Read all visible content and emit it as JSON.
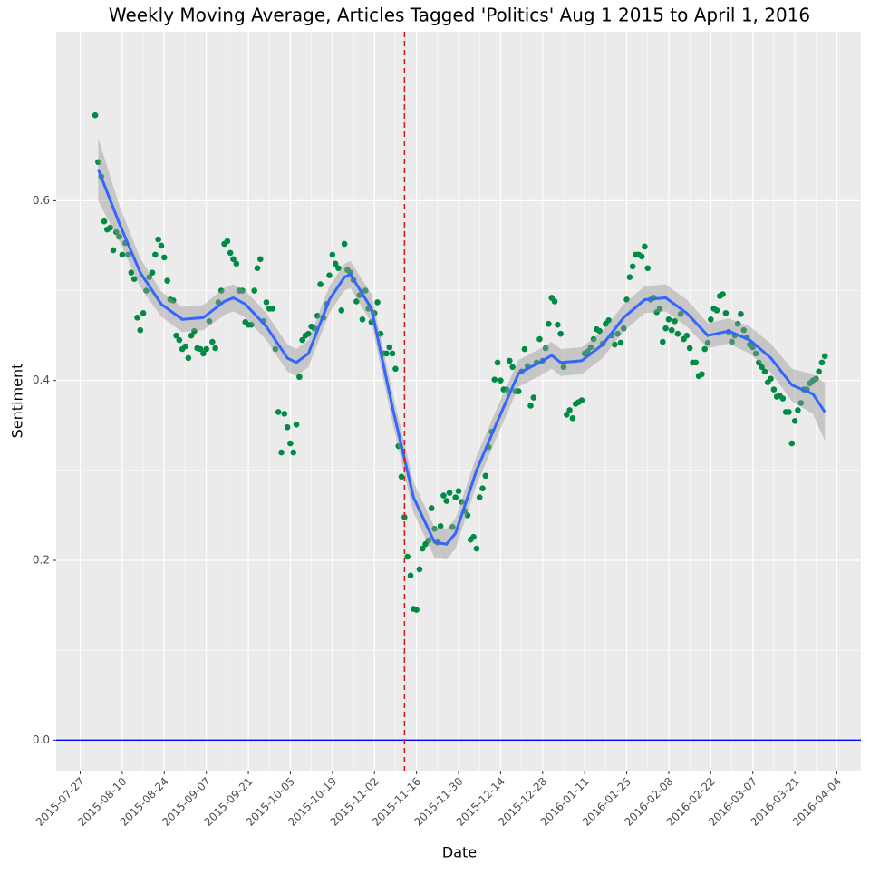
{
  "chart_data": {
    "type": "scatter",
    "title": "Weekly Moving Average, Articles Tagged 'Politics' Aug 1 2015 to April 1, 2016",
    "xlabel": "Date",
    "ylabel": "Sentiment",
    "xlim": [
      "2015-07-19",
      "2016-04-12"
    ],
    "ylim": [
      -0.034,
      0.788
    ],
    "xticks": [
      "2015-07-27",
      "2015-08-10",
      "2015-08-24",
      "2015-09-07",
      "2015-09-21",
      "2015-10-05",
      "2015-10-19",
      "2015-11-02",
      "2015-11-16",
      "2015-11-30",
      "2015-12-14",
      "2015-12-28",
      "2016-01-11",
      "2016-01-25",
      "2016-02-08",
      "2016-02-22",
      "2016-03-07",
      "2016-03-21",
      "2016-04-04"
    ],
    "yticks": [
      {
        "value": 0,
        "label": "0.0"
      },
      0.2,
      0.4,
      0.6
    ],
    "grid": true,
    "color": "#008B45",
    "x": [
      "2015-08-01",
      "2015-08-02",
      "2015-08-03",
      "2015-08-04",
      "2015-08-05",
      "2015-08-06",
      "2015-08-07",
      "2015-08-08",
      "2015-08-09",
      "2015-08-10",
      "2015-08-11",
      "2015-08-12",
      "2015-08-13",
      "2015-08-14",
      "2015-08-15",
      "2015-08-16",
      "2015-08-17",
      "2015-08-18",
      "2015-08-19",
      "2015-08-20",
      "2015-08-21",
      "2015-08-22",
      "2015-08-23",
      "2015-08-24",
      "2015-08-25",
      "2015-08-26",
      "2015-08-27",
      "2015-08-28",
      "2015-08-29",
      "2015-08-30",
      "2015-08-31",
      "2015-09-01",
      "2015-09-02",
      "2015-09-03",
      "2015-09-04",
      "2015-09-05",
      "2015-09-06",
      "2015-09-07",
      "2015-09-08",
      "2015-09-09",
      "2015-09-10",
      "2015-09-11",
      "2015-09-12",
      "2015-09-13",
      "2015-09-14",
      "2015-09-15",
      "2015-09-16",
      "2015-09-17",
      "2015-09-18",
      "2015-09-19",
      "2015-09-20",
      "2015-09-21",
      "2015-09-22",
      "2015-09-23",
      "2015-09-24",
      "2015-09-25",
      "2015-09-26",
      "2015-09-27",
      "2015-09-28",
      "2015-09-29",
      "2015-09-30",
      "2015-10-01",
      "2015-10-02",
      "2015-10-03",
      "2015-10-04",
      "2015-10-05",
      "2015-10-06",
      "2015-10-07",
      "2015-10-08",
      "2015-10-09",
      "2015-10-10",
      "2015-10-11",
      "2015-10-12",
      "2015-10-13",
      "2015-10-14",
      "2015-10-15",
      "2015-10-16",
      "2015-10-17",
      "2015-10-18",
      "2015-10-19",
      "2015-10-20",
      "2015-10-21",
      "2015-10-22",
      "2015-10-23",
      "2015-10-24",
      "2015-10-25",
      "2015-10-26",
      "2015-10-27",
      "2015-10-28",
      "2015-10-29",
      "2015-10-30",
      "2015-10-31",
      "2015-11-01",
      "2015-11-02",
      "2015-11-03",
      "2015-11-04",
      "2015-11-05",
      "2015-11-06",
      "2015-11-07",
      "2015-11-08",
      "2015-11-09",
      "2015-11-10",
      "2015-11-11",
      "2015-11-12",
      "2015-11-13",
      "2015-11-14",
      "2015-11-15",
      "2015-11-16",
      "2015-11-17",
      "2015-11-18",
      "2015-11-19",
      "2015-11-20",
      "2015-11-21",
      "2015-11-22",
      "2015-11-23",
      "2015-11-24",
      "2015-11-25",
      "2015-11-26",
      "2015-11-27",
      "2015-11-28",
      "2015-11-29",
      "2015-11-30",
      "2015-12-01",
      "2015-12-02",
      "2015-12-03",
      "2015-12-04",
      "2015-12-05",
      "2015-12-06",
      "2015-12-07",
      "2015-12-08",
      "2015-12-09",
      "2015-12-10",
      "2015-12-11",
      "2015-12-12",
      "2015-12-13",
      "2015-12-14",
      "2015-12-15",
      "2015-12-16",
      "2015-12-17",
      "2015-12-18",
      "2015-12-19",
      "2015-12-20",
      "2015-12-21",
      "2015-12-22",
      "2015-12-23",
      "2015-12-24",
      "2015-12-25",
      "2015-12-26",
      "2015-12-27",
      "2015-12-28",
      "2015-12-29",
      "2015-12-30",
      "2015-12-31",
      "2016-01-01",
      "2016-01-02",
      "2016-01-03",
      "2016-01-04",
      "2016-01-05",
      "2016-01-06",
      "2016-01-07",
      "2016-01-08",
      "2016-01-09",
      "2016-01-10",
      "2016-01-11",
      "2016-01-12",
      "2016-01-13",
      "2016-01-14",
      "2016-01-15",
      "2016-01-16",
      "2016-01-17",
      "2016-01-18",
      "2016-01-19",
      "2016-01-20",
      "2016-01-21",
      "2016-01-22",
      "2016-01-23",
      "2016-01-24",
      "2016-01-25",
      "2016-01-26",
      "2016-01-27",
      "2016-01-28",
      "2016-01-29",
      "2016-01-30",
      "2016-01-31",
      "2016-02-01",
      "2016-02-02",
      "2016-02-03",
      "2016-02-04",
      "2016-02-05",
      "2016-02-06",
      "2016-02-07",
      "2016-02-08",
      "2016-02-09",
      "2016-02-10",
      "2016-02-11",
      "2016-02-12",
      "2016-02-13",
      "2016-02-14",
      "2016-02-15",
      "2016-02-16",
      "2016-02-17",
      "2016-02-18",
      "2016-02-19",
      "2016-02-20",
      "2016-02-21",
      "2016-02-22",
      "2016-02-23",
      "2016-02-24",
      "2016-02-25",
      "2016-02-26",
      "2016-02-27",
      "2016-02-28",
      "2016-02-29",
      "2016-03-01",
      "2016-03-02",
      "2016-03-03",
      "2016-03-04",
      "2016-03-05",
      "2016-03-06",
      "2016-03-07",
      "2016-03-08",
      "2016-03-09",
      "2016-03-10",
      "2016-03-11",
      "2016-03-12",
      "2016-03-13",
      "2016-03-14",
      "2016-03-15",
      "2016-03-16",
      "2016-03-17",
      "2016-03-18",
      "2016-03-19",
      "2016-03-20",
      "2016-03-21",
      "2016-03-22",
      "2016-03-23",
      "2016-03-24",
      "2016-03-25",
      "2016-03-26",
      "2016-03-27",
      "2016-03-28",
      "2016-03-29",
      "2016-03-30",
      "2016-03-31"
    ],
    "values": [
      0.695,
      0.643,
      0.627,
      0.577,
      0.568,
      0.57,
      0.545,
      0.565,
      0.56,
      0.54,
      0.553,
      0.54,
      0.52,
      0.513,
      0.47,
      0.456,
      0.475,
      0.5,
      0.515,
      0.52,
      0.54,
      0.557,
      0.55,
      0.537,
      0.511,
      0.49,
      0.489,
      0.45,
      0.445,
      0.435,
      0.438,
      0.425,
      0.45,
      0.455,
      0.436,
      0.435,
      0.43,
      0.435,
      0.466,
      0.443,
      0.436,
      0.487,
      0.5,
      0.552,
      0.555,
      0.542,
      0.535,
      0.53,
      0.5,
      0.5,
      0.465,
      0.462,
      0.462,
      0.5,
      0.525,
      0.535,
      0.466,
      0.487,
      0.48,
      0.48,
      0.435,
      0.365,
      0.32,
      0.363,
      0.348,
      0.33,
      0.32,
      0.351,
      0.404,
      0.445,
      0.45,
      0.452,
      0.46,
      0.458,
      0.472,
      0.507,
      0.47,
      0.485,
      0.517,
      0.54,
      0.53,
      0.525,
      0.478,
      0.552,
      0.523,
      0.52,
      0.512,
      0.488,
      0.495,
      0.468,
      0.5,
      0.48,
      0.465,
      0.475,
      0.487,
      0.452,
      0.43,
      0.43,
      0.437,
      0.43,
      0.413,
      0.327,
      0.293,
      0.248,
      0.204,
      0.183,
      0.146,
      0.145,
      0.19,
      0.213,
      0.218,
      0.222,
      0.258,
      0.235,
      0.22,
      0.238,
      0.272,
      0.266,
      0.275,
      0.237,
      0.27,
      0.277,
      0.265,
      0.255,
      0.25,
      0.223,
      0.226,
      0.213,
      0.27,
      0.28,
      0.294,
      0.326,
      0.343,
      0.401,
      0.42,
      0.4,
      0.39,
      0.39,
      0.422,
      0.415,
      0.388,
      0.388,
      0.41,
      0.435,
      0.416,
      0.372,
      0.381,
      0.42,
      0.446,
      0.422,
      0.436,
      0.463,
      0.492,
      0.488,
      0.462,
      0.452,
      0.415,
      0.362,
      0.367,
      0.358,
      0.374,
      0.376,
      0.378,
      0.43,
      0.432,
      0.437,
      0.446,
      0.457,
      0.455,
      0.441,
      0.463,
      0.467,
      0.45,
      0.44,
      0.452,
      0.442,
      0.458,
      0.49,
      0.515,
      0.527,
      0.54,
      0.54,
      0.538,
      0.549,
      0.525,
      0.49,
      0.492,
      0.476,
      0.48,
      0.443,
      0.458,
      0.468,
      0.456,
      0.466,
      0.452,
      0.474,
      0.446,
      0.45,
      0.436,
      0.42,
      0.42,
      0.405,
      0.407,
      0.435,
      0.442,
      0.468,
      0.48,
      0.478,
      0.494,
      0.496,
      0.475,
      0.454,
      0.443,
      0.45,
      0.463,
      0.474,
      0.456,
      0.448,
      0.44,
      0.437,
      0.43,
      0.42,
      0.415,
      0.41,
      0.398,
      0.402,
      0.39,
      0.382,
      0.383,
      0.38,
      0.365,
      0.365,
      0.33,
      0.355,
      0.367,
      0.375,
      0.39,
      0.39,
      0.397,
      0.4,
      0.402,
      0.41,
      0.42,
      0.427
    ],
    "smooth": {
      "color": "#3366FF",
      "band_color": "#999999",
      "x": [
        "2015-08-02",
        "2015-08-09",
        "2015-08-16",
        "2015-08-23",
        "2015-08-30",
        "2015-09-06",
        "2015-09-13",
        "2015-09-16",
        "2015-09-20",
        "2015-09-27",
        "2015-10-04",
        "2015-10-07",
        "2015-10-11",
        "2015-10-18",
        "2015-10-23",
        "2015-10-25",
        "2015-11-01",
        "2015-11-08",
        "2015-11-15",
        "2015-11-22",
        "2015-11-26",
        "2015-11-29",
        "2015-12-06",
        "2015-12-13",
        "2015-12-20",
        "2015-12-27",
        "2015-12-31",
        "2016-01-03",
        "2016-01-10",
        "2016-01-17",
        "2016-01-24",
        "2016-01-31",
        "2016-02-07",
        "2016-02-14",
        "2016-02-21",
        "2016-02-28",
        "2016-03-06",
        "2016-03-13",
        "2016-03-20",
        "2016-03-27",
        "2016-03-31"
      ],
      "values": [
        0.635,
        0.575,
        0.52,
        0.485,
        0.468,
        0.47,
        0.488,
        0.492,
        0.485,
        0.46,
        0.425,
        0.42,
        0.43,
        0.49,
        0.515,
        0.518,
        0.48,
        0.37,
        0.27,
        0.22,
        0.218,
        0.23,
        0.3,
        0.355,
        0.408,
        0.42,
        0.428,
        0.42,
        0.422,
        0.44,
        0.47,
        0.49,
        0.492,
        0.475,
        0.45,
        0.455,
        0.445,
        0.425,
        0.395,
        0.385,
        0.365
      ],
      "se": [
        0.035,
        0.02,
        0.016,
        0.014,
        0.014,
        0.014,
        0.015,
        0.015,
        0.015,
        0.015,
        0.015,
        0.015,
        0.015,
        0.015,
        0.015,
        0.015,
        0.016,
        0.017,
        0.017,
        0.017,
        0.017,
        0.017,
        0.016,
        0.016,
        0.015,
        0.015,
        0.015,
        0.015,
        0.015,
        0.015,
        0.015,
        0.015,
        0.015,
        0.015,
        0.014,
        0.014,
        0.015,
        0.016,
        0.018,
        0.022,
        0.032
      ]
    },
    "vline": {
      "x": "2015-11-12",
      "color": "#e31a1c"
    },
    "hline": {
      "y": 0,
      "color": "#0000ff"
    }
  }
}
